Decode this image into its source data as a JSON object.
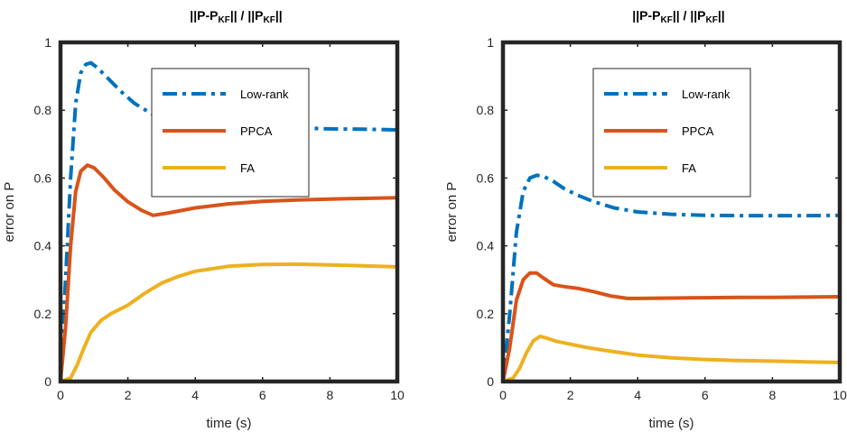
{
  "chart_data": [
    {
      "type": "line",
      "title_parts": [
        "||P-P",
        "KF",
        "|| / ||P",
        "KF",
        "||"
      ],
      "xlabel": "time (s)",
      "ylabel": "error on P",
      "xlim": [
        0,
        10
      ],
      "ylim": [
        0,
        1
      ],
      "xticks": [
        0,
        2,
        4,
        6,
        8,
        10
      ],
      "yticks": [
        0,
        0.2,
        0.4,
        0.6,
        0.8,
        1
      ],
      "legend_position": "upper-center",
      "series": [
        {
          "name": "Low-rank",
          "color": "#0072BD",
          "style": "dashdot",
          "x": [
            0,
            0.15,
            0.3,
            0.45,
            0.6,
            0.75,
            0.9,
            1.1,
            1.4,
            1.8,
            2.2,
            2.7,
            3.3,
            4,
            5,
            6,
            7,
            8,
            9,
            10
          ],
          "y": [
            0,
            0.3,
            0.6,
            0.82,
            0.91,
            0.935,
            0.94,
            0.925,
            0.895,
            0.855,
            0.82,
            0.79,
            0.775,
            0.765,
            0.755,
            0.75,
            0.748,
            0.745,
            0.744,
            0.742
          ]
        },
        {
          "name": "PPCA",
          "color": "#D95319",
          "style": "solid",
          "x": [
            0,
            0.15,
            0.3,
            0.45,
            0.6,
            0.8,
            1.0,
            1.3,
            1.6,
            2.0,
            2.4,
            2.75,
            3.2,
            4,
            5,
            6,
            7,
            8,
            9,
            10
          ],
          "y": [
            0,
            0.16,
            0.4,
            0.56,
            0.62,
            0.638,
            0.63,
            0.6,
            0.565,
            0.53,
            0.505,
            0.49,
            0.497,
            0.512,
            0.524,
            0.531,
            0.535,
            0.538,
            0.54,
            0.542
          ]
        },
        {
          "name": "FA",
          "color": "#EDB120",
          "style": "solid",
          "x": [
            0,
            0.3,
            0.5,
            0.7,
            0.9,
            1.2,
            1.5,
            2.0,
            2.5,
            3.0,
            3.5,
            4,
            5,
            6,
            7,
            8,
            9,
            10
          ],
          "y": [
            0,
            0.01,
            0.05,
            0.1,
            0.145,
            0.18,
            0.2,
            0.225,
            0.26,
            0.29,
            0.31,
            0.325,
            0.34,
            0.345,
            0.346,
            0.344,
            0.341,
            0.338
          ]
        }
      ]
    },
    {
      "type": "line",
      "title_parts": [
        "||P-P",
        "KF",
        "|| / ||P",
        "KF",
        "||"
      ],
      "xlabel": "time (s)",
      "ylabel": "error on P",
      "xlim": [
        0,
        10
      ],
      "ylim": [
        0,
        1
      ],
      "xticks": [
        0,
        2,
        4,
        6,
        8,
        10
      ],
      "yticks": [
        0,
        0.2,
        0.4,
        0.6,
        0.8,
        1
      ],
      "legend_position": "upper-center",
      "series": [
        {
          "name": "Low-rank",
          "color": "#0072BD",
          "style": "dashdot",
          "x": [
            0,
            0.2,
            0.4,
            0.6,
            0.8,
            1.0,
            1.2,
            1.5,
            1.8,
            2.2,
            2.7,
            3.3,
            4,
            5,
            6,
            7,
            8,
            9,
            10
          ],
          "y": [
            0,
            0.2,
            0.44,
            0.56,
            0.6,
            0.608,
            0.605,
            0.59,
            0.57,
            0.55,
            0.53,
            0.512,
            0.5,
            0.493,
            0.49,
            0.489,
            0.489,
            0.489,
            0.49
          ]
        },
        {
          "name": "PPCA",
          "color": "#D95319",
          "style": "solid",
          "x": [
            0,
            0.2,
            0.4,
            0.6,
            0.8,
            1.0,
            1.2,
            1.5,
            1.8,
            2.2,
            2.7,
            3.2,
            3.7,
            4,
            5,
            6,
            7,
            8,
            9,
            10
          ],
          "y": [
            0,
            0.1,
            0.24,
            0.3,
            0.32,
            0.32,
            0.305,
            0.285,
            0.28,
            0.275,
            0.265,
            0.252,
            0.245,
            0.245,
            0.246,
            0.247,
            0.248,
            0.248,
            0.249,
            0.25
          ]
        },
        {
          "name": "FA",
          "color": "#EDB120",
          "style": "solid",
          "x": [
            0,
            0.3,
            0.5,
            0.7,
            0.9,
            1.1,
            1.3,
            1.6,
            2.0,
            2.5,
            3.0,
            3.5,
            4,
            5,
            6,
            7,
            8,
            9,
            10
          ],
          "y": [
            0,
            0.01,
            0.04,
            0.085,
            0.12,
            0.133,
            0.128,
            0.118,
            0.11,
            0.1,
            0.092,
            0.085,
            0.078,
            0.07,
            0.065,
            0.062,
            0.06,
            0.058,
            0.056
          ]
        }
      ]
    }
  ]
}
